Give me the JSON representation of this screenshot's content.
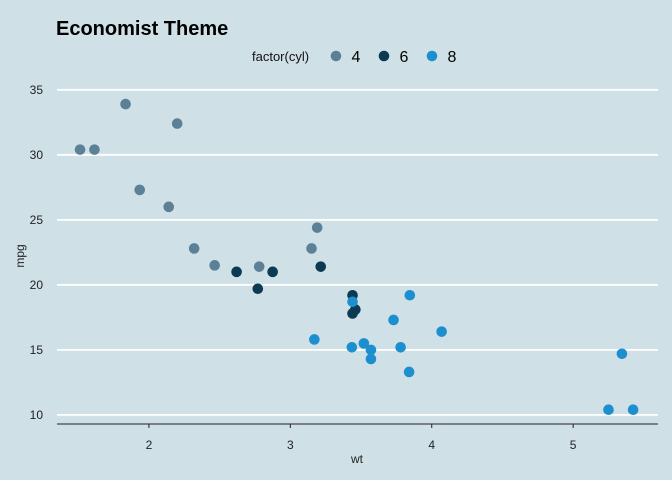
{
  "chart_data": {
    "type": "scatter",
    "title": "Economist Theme",
    "xlabel": "wt",
    "ylabel": "mpg",
    "xlim": [
      1.35,
      5.6
    ],
    "ylim": [
      9.3,
      35.6
    ],
    "xticks": [
      2,
      3,
      4,
      5
    ],
    "yticks": [
      10,
      15,
      20,
      25,
      30,
      35
    ],
    "grid": "horizontal",
    "legend": {
      "title": "factor(cyl)",
      "position": "top"
    },
    "colors": {
      "background": "#cfe0e7",
      "grid": "#ffffff"
    },
    "series": [
      {
        "name": "4",
        "color": "#5c8197",
        "points": [
          [
            2.32,
            22.8
          ],
          [
            3.19,
            24.4
          ],
          [
            3.15,
            22.8
          ],
          [
            2.2,
            32.4
          ],
          [
            1.615,
            30.4
          ],
          [
            1.835,
            33.9
          ],
          [
            2.465,
            21.5
          ],
          [
            1.935,
            27.3
          ],
          [
            2.14,
            26.0
          ],
          [
            1.513,
            30.4
          ],
          [
            2.78,
            21.4
          ]
        ]
      },
      {
        "name": "6",
        "color": "#0c3a52",
        "points": [
          [
            2.62,
            21.0
          ],
          [
            2.875,
            21.0
          ],
          [
            3.215,
            21.4
          ],
          [
            3.46,
            18.1
          ],
          [
            3.44,
            19.2
          ],
          [
            3.44,
            17.8
          ],
          [
            2.77,
            19.7
          ]
        ]
      },
      {
        "name": "8",
        "color": "#1d8fcf",
        "points": [
          [
            3.44,
            18.7
          ],
          [
            3.57,
            14.3
          ],
          [
            4.07,
            16.4
          ],
          [
            3.73,
            17.3
          ],
          [
            3.78,
            15.2
          ],
          [
            5.25,
            10.4
          ],
          [
            5.424,
            10.4
          ],
          [
            5.345,
            14.7
          ],
          [
            3.52,
            15.5
          ],
          [
            3.435,
            15.2
          ],
          [
            3.84,
            13.3
          ],
          [
            3.845,
            19.2
          ],
          [
            3.17,
            15.8
          ],
          [
            3.57,
            15.0
          ]
        ]
      }
    ]
  }
}
